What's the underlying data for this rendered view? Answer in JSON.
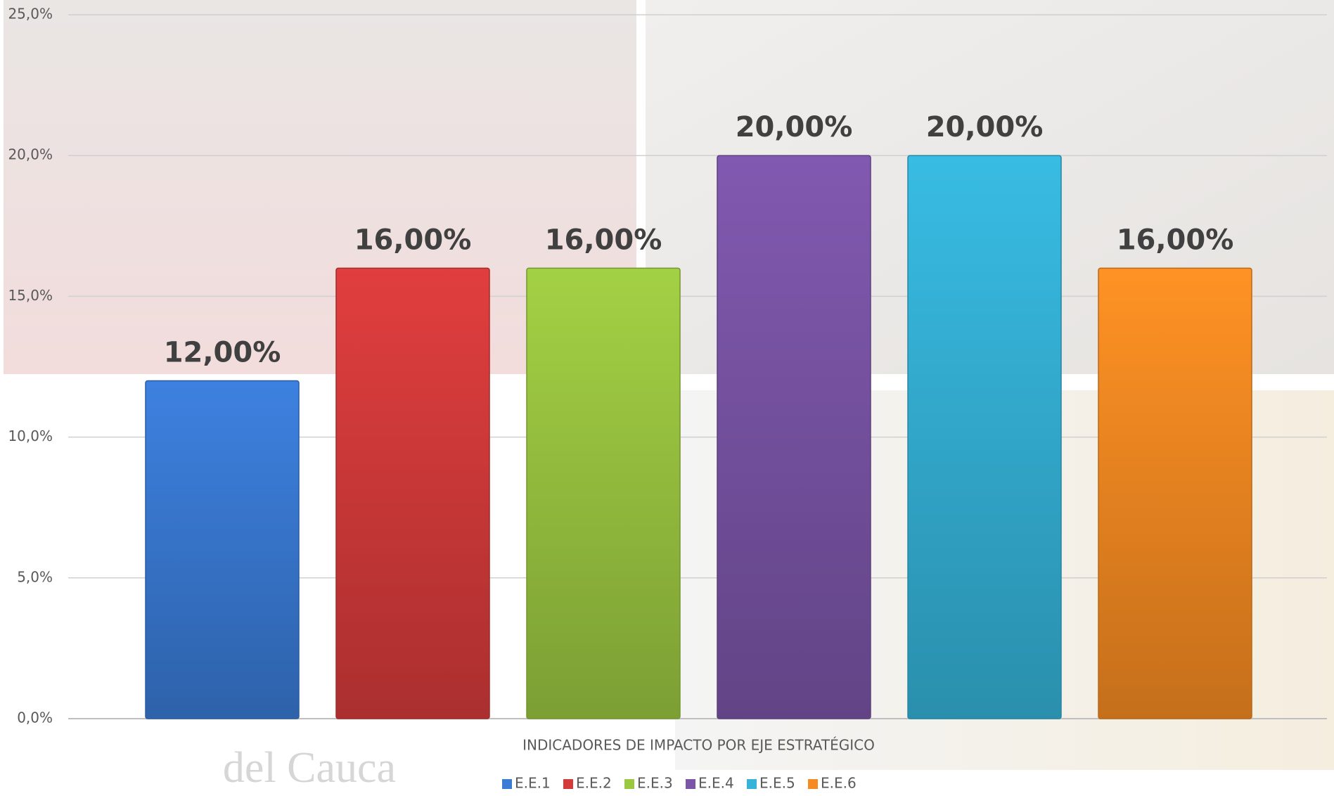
{
  "chart_data": {
    "type": "bar",
    "categories": [
      "INDICADORES DE IMPACTO POR EJE ESTRATÉGICO"
    ],
    "series": [
      {
        "name": "E.E.1",
        "color": "#3a7bd5",
        "values": [
          12
        ],
        "value_labels": [
          "12,00%"
        ]
      },
      {
        "name": "E.E.2",
        "color": "#d63b3b",
        "values": [
          16
        ],
        "value_labels": [
          "16,00%"
        ]
      },
      {
        "name": "E.E.3",
        "color": "#9bc741",
        "values": [
          16
        ],
        "value_labels": [
          "16,00%"
        ]
      },
      {
        "name": "E.E.4",
        "color": "#7b55a8",
        "values": [
          20
        ],
        "value_labels": [
          "20,00%"
        ]
      },
      {
        "name": "E.E.5",
        "color": "#35b3d8",
        "values": [
          20
        ],
        "value_labels": [
          "20,00%"
        ]
      },
      {
        "name": "E.E.6",
        "color": "#f68b22",
        "values": [
          16
        ],
        "value_labels": [
          "16,00%"
        ]
      }
    ],
    "ylim": [
      0,
      25
    ],
    "yticks": [
      {
        "value": 0,
        "label": "0,0%"
      },
      {
        "value": 5,
        "label": "5,0%"
      },
      {
        "value": 10,
        "label": "10,0%"
      },
      {
        "value": 15,
        "label": "15,0%"
      },
      {
        "value": 20,
        "label": "20,0%"
      },
      {
        "value": 25,
        "label": "25,0%"
      }
    ],
    "grid": true,
    "legend": "bottom"
  }
}
